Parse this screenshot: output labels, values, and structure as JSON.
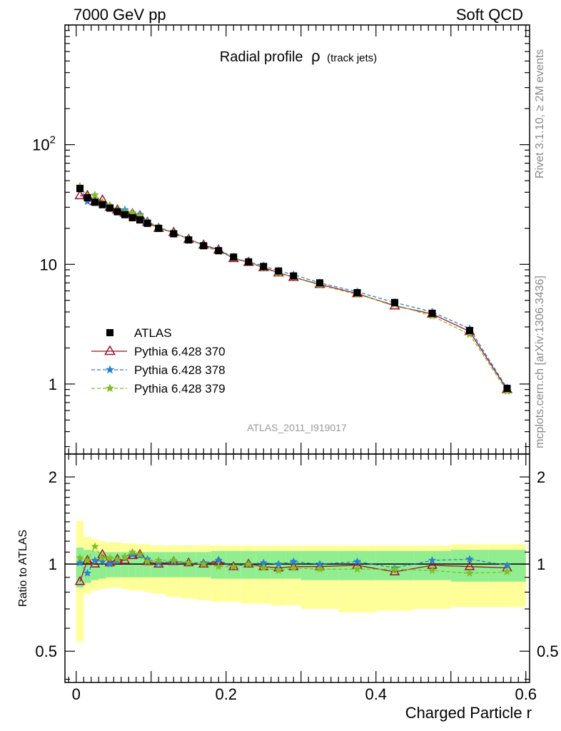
{
  "header": {
    "energy_label": "7000 GeV pp",
    "category_label": "Soft QCD"
  },
  "side_text": {
    "rivet": "Rivet 3.1.10, ≥ 2M events",
    "mcplots": "mcplots.cern.ch [arXiv:1306.3436]"
  },
  "colors": {
    "atlas": "#000000",
    "p370": "#a50f2d",
    "p378": "#2b7fd4",
    "p379": "#7fbf1f",
    "band_inner": "#90ee90",
    "band_outer": "#ffff99"
  },
  "chart_data": [
    {
      "type": "scatter",
      "title": "Radial profile",
      "title_symbol": "ρ",
      "title_suffix": "(track jets)",
      "watermark": "ATLAS_2011_I919017",
      "xlabel": "",
      "ylabel": "",
      "xlim": [
        -0.015,
        0.605
      ],
      "ylim": [
        0.26,
        1000
      ],
      "yscale": "log",
      "yticks": [
        1,
        10,
        100
      ],
      "ytick_labels": [
        "1",
        "10",
        "10^2"
      ],
      "legend_placement": "lower-left",
      "x": [
        0.005,
        0.015,
        0.025,
        0.035,
        0.045,
        0.055,
        0.065,
        0.075,
        0.085,
        0.095,
        0.11,
        0.13,
        0.15,
        0.17,
        0.19,
        0.21,
        0.23,
        0.25,
        0.27,
        0.29,
        0.325,
        0.375,
        0.425,
        0.475,
        0.525,
        0.575
      ],
      "series": [
        {
          "name": "ATLAS",
          "marker": "square",
          "values": [
            43,
            36,
            33,
            31.5,
            29.5,
            27.5,
            26,
            24.5,
            23.5,
            22,
            20,
            18,
            16,
            14.3,
            13,
            11.5,
            10.5,
            9.6,
            8.8,
            8.0,
            7.0,
            5.8,
            4.8,
            3.9,
            2.8,
            0.92
          ]
        },
        {
          "name": "Pythia 6.428 370",
          "marker": "triangle",
          "line": "solid",
          "values": [
            37.5,
            37.5,
            33.5,
            34.5,
            30,
            28.5,
            26.8,
            26.5,
            25.5,
            22.5,
            20,
            18.5,
            16.2,
            14.5,
            13.2,
            11.2,
            10.4,
            9.4,
            8.5,
            7.8,
            6.8,
            5.7,
            4.5,
            3.85,
            2.75,
            0.9
          ]
        },
        {
          "name": "Pythia 6.428 378",
          "marker": "star",
          "line": "dashed",
          "values": [
            43.5,
            33.5,
            34,
            32,
            30,
            28,
            28.5,
            26.5,
            26,
            23,
            20.3,
            18.3,
            16.3,
            14.5,
            13.4,
            11.3,
            10.5,
            9.7,
            8.8,
            8.2,
            7.0,
            5.9,
            4.8,
            4.0,
            2.9,
            0.92
          ]
        },
        {
          "name": "Pythia 6.428 379",
          "marker": "star",
          "line": "dashed",
          "values": [
            45,
            37,
            38,
            33,
            31,
            28.5,
            27.5,
            27,
            25.5,
            22.5,
            20.5,
            18.5,
            16.2,
            14.3,
            12.8,
            11.3,
            10.5,
            9.3,
            8.4,
            7.8,
            6.7,
            5.6,
            4.6,
            3.7,
            2.6,
            0.87
          ]
        }
      ]
    },
    {
      "type": "scatter",
      "xlabel": "Charged Particle r",
      "ylabel": "Ratio to ATLAS",
      "xlim": [
        -0.015,
        0.605
      ],
      "ylim": [
        0.39,
        2.4
      ],
      "yscale": "log",
      "yticks": [
        0.5,
        1,
        2
      ],
      "ytick_labels": [
        "0.5",
        "1",
        "2"
      ],
      "xticks": [
        0,
        0.2,
        0.4,
        0.6
      ],
      "xtick_labels": [
        "0",
        "0.2",
        "0.4",
        "0.6"
      ],
      "reference_line": 1,
      "bins": [
        [
          0.0,
          0.01
        ],
        [
          0.01,
          0.02
        ],
        [
          0.02,
          0.03
        ],
        [
          0.03,
          0.04
        ],
        [
          0.04,
          0.05
        ],
        [
          0.05,
          0.06
        ],
        [
          0.06,
          0.07
        ],
        [
          0.07,
          0.08
        ],
        [
          0.08,
          0.09
        ],
        [
          0.09,
          0.1
        ],
        [
          0.1,
          0.12
        ],
        [
          0.12,
          0.14
        ],
        [
          0.14,
          0.16
        ],
        [
          0.16,
          0.18
        ],
        [
          0.18,
          0.2
        ],
        [
          0.2,
          0.22
        ],
        [
          0.22,
          0.24
        ],
        [
          0.24,
          0.26
        ],
        [
          0.26,
          0.28
        ],
        [
          0.28,
          0.3
        ],
        [
          0.3,
          0.35
        ],
        [
          0.35,
          0.4
        ],
        [
          0.4,
          0.45
        ],
        [
          0.45,
          0.5
        ],
        [
          0.5,
          0.55
        ],
        [
          0.55,
          0.6
        ]
      ],
      "band_inner": [
        [
          0.83,
          1.14
        ],
        [
          0.86,
          1.12
        ],
        [
          0.88,
          1.11
        ],
        [
          0.89,
          1.1
        ],
        [
          0.9,
          1.1
        ],
        [
          0.9,
          1.1
        ],
        [
          0.9,
          1.1
        ],
        [
          0.9,
          1.1
        ],
        [
          0.9,
          1.1
        ],
        [
          0.9,
          1.1
        ],
        [
          0.9,
          1.1
        ],
        [
          0.9,
          1.1
        ],
        [
          0.9,
          1.1
        ],
        [
          0.9,
          1.1
        ],
        [
          0.89,
          1.11
        ],
        [
          0.89,
          1.11
        ],
        [
          0.89,
          1.11
        ],
        [
          0.89,
          1.11
        ],
        [
          0.89,
          1.11
        ],
        [
          0.89,
          1.11
        ],
        [
          0.88,
          1.11
        ],
        [
          0.88,
          1.11
        ],
        [
          0.88,
          1.11
        ],
        [
          0.88,
          1.11
        ],
        [
          0.87,
          1.12
        ],
        [
          0.87,
          1.12
        ]
      ],
      "band_outer": [
        [
          0.54,
          1.41
        ],
        [
          0.79,
          1.24
        ],
        [
          0.81,
          1.22
        ],
        [
          0.82,
          1.2
        ],
        [
          0.83,
          1.19
        ],
        [
          0.83,
          1.19
        ],
        [
          0.82,
          1.18
        ],
        [
          0.81,
          1.18
        ],
        [
          0.81,
          1.17
        ],
        [
          0.8,
          1.17
        ],
        [
          0.79,
          1.16
        ],
        [
          0.77,
          1.16
        ],
        [
          0.76,
          1.16
        ],
        [
          0.75,
          1.16
        ],
        [
          0.74,
          1.16
        ],
        [
          0.74,
          1.16
        ],
        [
          0.73,
          1.16
        ],
        [
          0.73,
          1.16
        ],
        [
          0.72,
          1.16
        ],
        [
          0.72,
          1.16
        ],
        [
          0.7,
          1.16
        ],
        [
          0.68,
          1.16
        ],
        [
          0.69,
          1.16
        ],
        [
          0.7,
          1.16
        ],
        [
          0.71,
          1.17
        ],
        [
          0.71,
          1.17
        ]
      ],
      "series": [
        {
          "name": "Pythia 6.428 370",
          "values": [
            0.87,
            1.03,
            1.0,
            1.08,
            1.01,
            1.04,
            1.03,
            1.07,
            1.08,
            1.02,
            1.0,
            1.02,
            1.01,
            1.0,
            1.02,
            0.98,
            1.0,
            0.98,
            0.97,
            0.98,
            0.98,
            0.99,
            0.94,
            0.99,
            0.98,
            0.97
          ]
        },
        {
          "name": "Pythia 6.428 378",
          "values": [
            1.01,
            0.93,
            1.03,
            1.02,
            1.0,
            1.03,
            1.06,
            1.08,
            1.07,
            1.04,
            1.01,
            1.02,
            1.01,
            1.01,
            1.03,
            0.98,
            1.0,
            1.01,
            1.0,
            1.02,
            1.0,
            1.02,
            0.97,
            1.03,
            1.04,
            0.99
          ]
        },
        {
          "name": "Pythia 6.428 379",
          "values": [
            1.05,
            1.03,
            1.15,
            1.05,
            1.05,
            1.04,
            1.06,
            1.1,
            1.08,
            1.02,
            1.03,
            1.03,
            1.01,
            1.0,
            0.98,
            0.98,
            1.0,
            0.97,
            0.95,
            0.97,
            0.96,
            0.96,
            0.96,
            0.95,
            0.93,
            0.94
          ]
        }
      ]
    }
  ]
}
